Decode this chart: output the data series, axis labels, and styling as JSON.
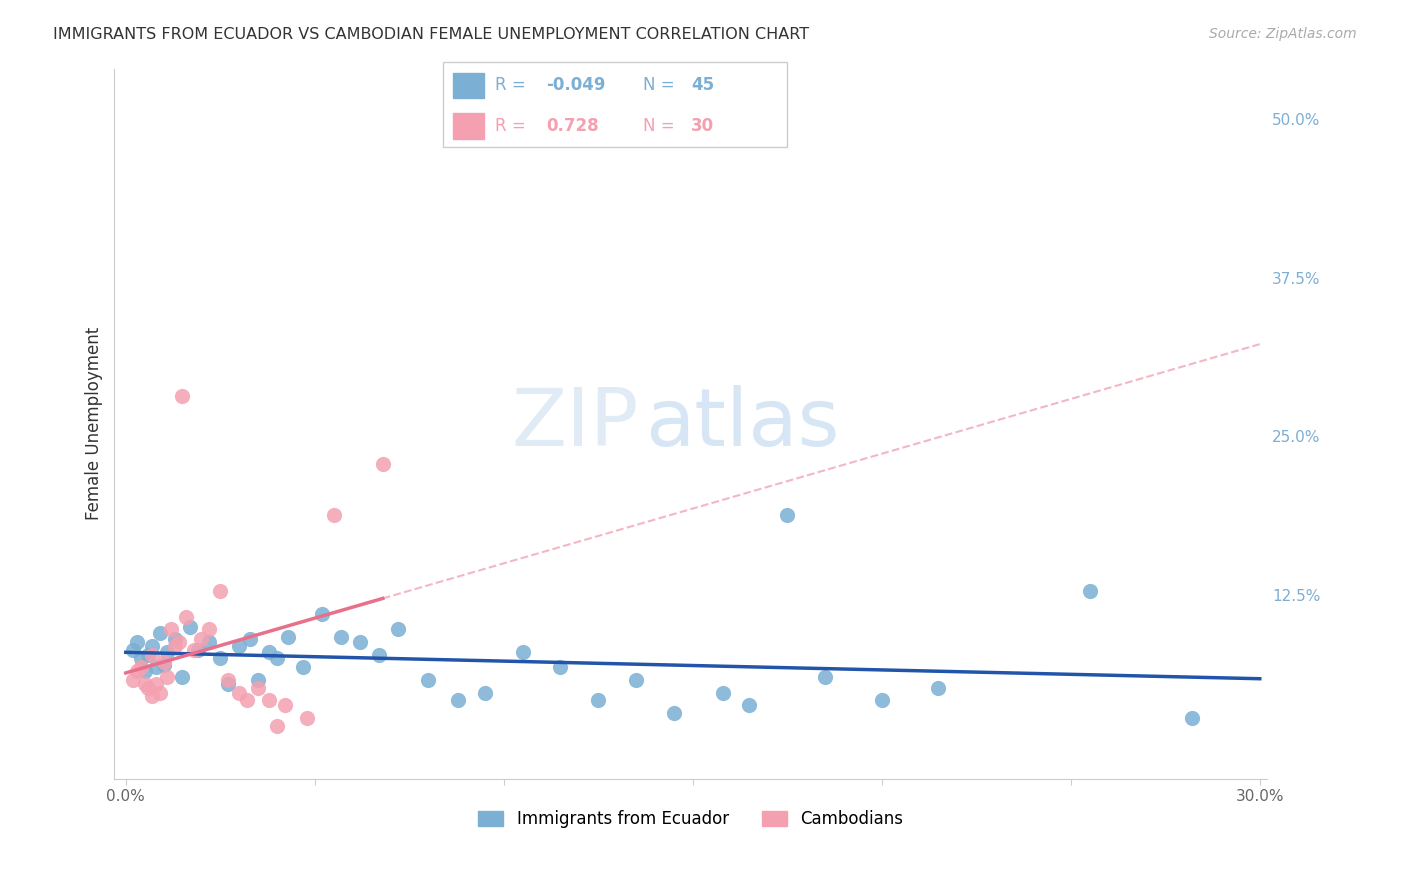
{
  "title": "IMMIGRANTS FROM ECUADOR VS CAMBODIAN FEMALE UNEMPLOYMENT CORRELATION CHART",
  "source": "Source: ZipAtlas.com",
  "ylabel": "Female Unemployment",
  "legend_label1": "Immigrants from Ecuador",
  "legend_label2": "Cambodians",
  "r1": "-0.049",
  "n1": "45",
  "r2": "0.728",
  "n2": "30",
  "xlim": [
    -0.003,
    0.302
  ],
  "ylim": [
    -0.02,
    0.54
  ],
  "xtick_pos": [
    0.0,
    0.05,
    0.1,
    0.15,
    0.2,
    0.25,
    0.3
  ],
  "xtick_labels": [
    "0.0%",
    "",
    "",
    "",
    "",
    "",
    "30.0%"
  ],
  "ytick_positions": [
    0.125,
    0.25,
    0.375,
    0.5
  ],
  "ytick_labels": [
    "12.5%",
    "25.0%",
    "37.5%",
    "50.0%"
  ],
  "color_blue": "#7BAFD4",
  "color_pink": "#F4A0B0",
  "color_line_blue": "#2255AA",
  "color_line_pink": "#E8708A",
  "color_grid": "#CCCCCC",
  "color_ytick": "#7BAFD4",
  "watermark_zip": "ZIP",
  "watermark_atlas": "atlas",
  "blue_x": [
    0.002,
    0.003,
    0.004,
    0.005,
    0.006,
    0.007,
    0.008,
    0.009,
    0.01,
    0.011,
    0.013,
    0.015,
    0.017,
    0.019,
    0.022,
    0.025,
    0.027,
    0.03,
    0.033,
    0.035,
    0.038,
    0.04,
    0.043,
    0.047,
    0.052,
    0.057,
    0.062,
    0.067,
    0.072,
    0.08,
    0.088,
    0.095,
    0.105,
    0.115,
    0.125,
    0.135,
    0.145,
    0.158,
    0.165,
    0.175,
    0.185,
    0.2,
    0.215,
    0.255,
    0.282
  ],
  "blue_y": [
    0.082,
    0.088,
    0.075,
    0.065,
    0.078,
    0.085,
    0.068,
    0.095,
    0.07,
    0.08,
    0.09,
    0.06,
    0.1,
    0.082,
    0.088,
    0.075,
    0.055,
    0.085,
    0.09,
    0.058,
    0.08,
    0.075,
    0.092,
    0.068,
    0.11,
    0.092,
    0.088,
    0.078,
    0.098,
    0.058,
    0.042,
    0.048,
    0.08,
    0.068,
    0.042,
    0.058,
    0.032,
    0.048,
    0.038,
    0.188,
    0.06,
    0.042,
    0.052,
    0.128,
    0.028
  ],
  "pink_x": [
    0.002,
    0.003,
    0.004,
    0.005,
    0.006,
    0.007,
    0.007,
    0.008,
    0.009,
    0.01,
    0.011,
    0.012,
    0.013,
    0.014,
    0.015,
    0.016,
    0.018,
    0.02,
    0.022,
    0.025,
    0.027,
    0.03,
    0.032,
    0.035,
    0.038,
    0.04,
    0.042,
    0.048,
    0.055,
    0.068
  ],
  "pink_y": [
    0.058,
    0.065,
    0.068,
    0.055,
    0.052,
    0.078,
    0.045,
    0.055,
    0.048,
    0.072,
    0.06,
    0.098,
    0.085,
    0.088,
    0.282,
    0.108,
    0.082,
    0.09,
    0.098,
    0.128,
    0.058,
    0.048,
    0.042,
    0.052,
    0.042,
    0.022,
    0.038,
    0.028,
    0.188,
    0.228
  ]
}
